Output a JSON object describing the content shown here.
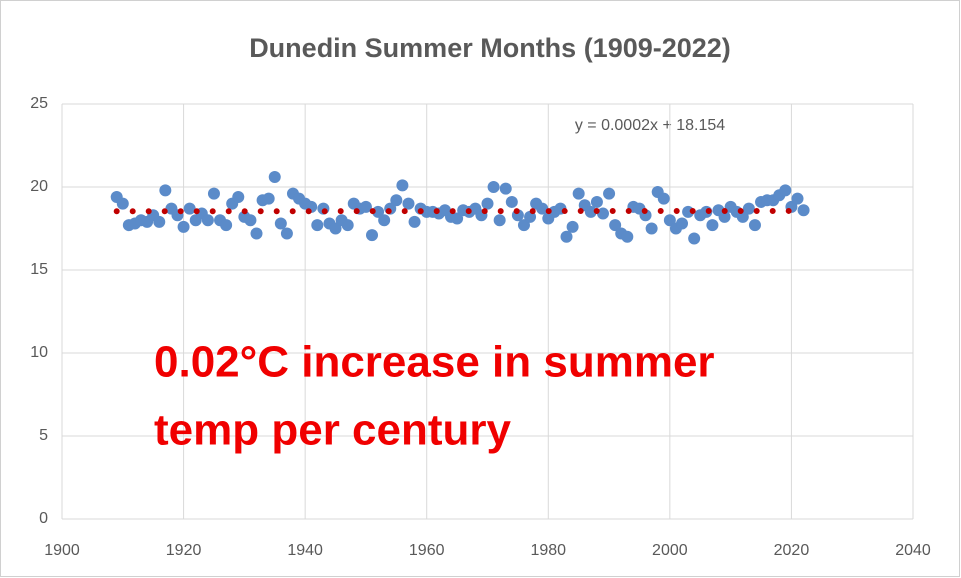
{
  "chart_data": {
    "type": "scatter",
    "title": "Dunedin Summer Months (1909-2022)",
    "x": [
      1909,
      1910,
      1911,
      1912,
      1913,
      1914,
      1915,
      1916,
      1917,
      1918,
      1919,
      1920,
      1921,
      1922,
      1923,
      1924,
      1925,
      1926,
      1927,
      1928,
      1929,
      1930,
      1931,
      1932,
      1933,
      1934,
      1935,
      1936,
      1937,
      1938,
      1939,
      1940,
      1941,
      1942,
      1943,
      1944,
      1945,
      1946,
      1947,
      1948,
      1949,
      1950,
      1951,
      1952,
      1953,
      1954,
      1955,
      1956,
      1957,
      1958,
      1959,
      1960,
      1961,
      1962,
      1963,
      1964,
      1965,
      1966,
      1967,
      1968,
      1969,
      1970,
      1971,
      1972,
      1973,
      1974,
      1975,
      1976,
      1977,
      1978,
      1979,
      1980,
      1981,
      1982,
      1983,
      1984,
      1985,
      1986,
      1987,
      1988,
      1989,
      1990,
      1991,
      1992,
      1993,
      1994,
      1995,
      1996,
      1997,
      1998,
      1999,
      2000,
      2001,
      2002,
      2003,
      2004,
      2005,
      2006,
      2007,
      2008,
      2009,
      2010,
      2011,
      2012,
      2013,
      2014,
      2015,
      2016,
      2017,
      2018,
      2019,
      2020,
      2021,
      2022
    ],
    "values": [
      19.4,
      19.0,
      17.7,
      17.8,
      18.0,
      17.9,
      18.3,
      17.9,
      19.8,
      18.7,
      18.3,
      17.6,
      18.7,
      18.0,
      18.4,
      18.0,
      19.6,
      18.0,
      17.7,
      19.0,
      19.4,
      18.2,
      18.0,
      17.2,
      19.2,
      19.3,
      20.6,
      17.8,
      17.2,
      19.6,
      19.3,
      19.0,
      18.8,
      17.7,
      18.7,
      17.8,
      17.5,
      18.0,
      17.7,
      19.0,
      18.7,
      18.8,
      17.1,
      18.5,
      18.0,
      18.7,
      19.2,
      20.1,
      19.0,
      17.9,
      18.7,
      18.5,
      18.5,
      18.4,
      18.6,
      18.2,
      18.1,
      18.6,
      18.5,
      18.7,
      18.3,
      19.0,
      20.0,
      18.0,
      19.9,
      19.1,
      18.3,
      17.7,
      18.2,
      19.0,
      18.7,
      18.1,
      18.5,
      18.7,
      17.0,
      17.6,
      19.6,
      18.9,
      18.5,
      19.1,
      18.4,
      19.6,
      17.7,
      17.2,
      17.0,
      18.8,
      18.7,
      18.3,
      17.5,
      19.7,
      19.3,
      18.0,
      17.5,
      17.8,
      18.5,
      16.9,
      18.3,
      18.5,
      17.7,
      18.6,
      18.2,
      18.8,
      18.5,
      18.2,
      18.7,
      17.7,
      19.1,
      19.2,
      19.2,
      19.5,
      19.8,
      18.8,
      19.3,
      18.6
    ],
    "color": "#5b8bc9",
    "trendline": {
      "label": "y = 0.0002x + 18.154",
      "slope": 0.0002,
      "intercept": 18.154,
      "color": "#c00000"
    },
    "annotation": [
      "0.02°C increase in summer",
      "temp per century"
    ],
    "annotation_color": "#f00000",
    "xlim": [
      1900,
      2040
    ],
    "xticks": [
      1900,
      1920,
      1940,
      1960,
      1980,
      2000,
      2020,
      2040
    ],
    "ylim": [
      0,
      25
    ],
    "yticks": [
      0,
      5,
      10,
      15,
      20,
      25
    ],
    "grid": true
  }
}
